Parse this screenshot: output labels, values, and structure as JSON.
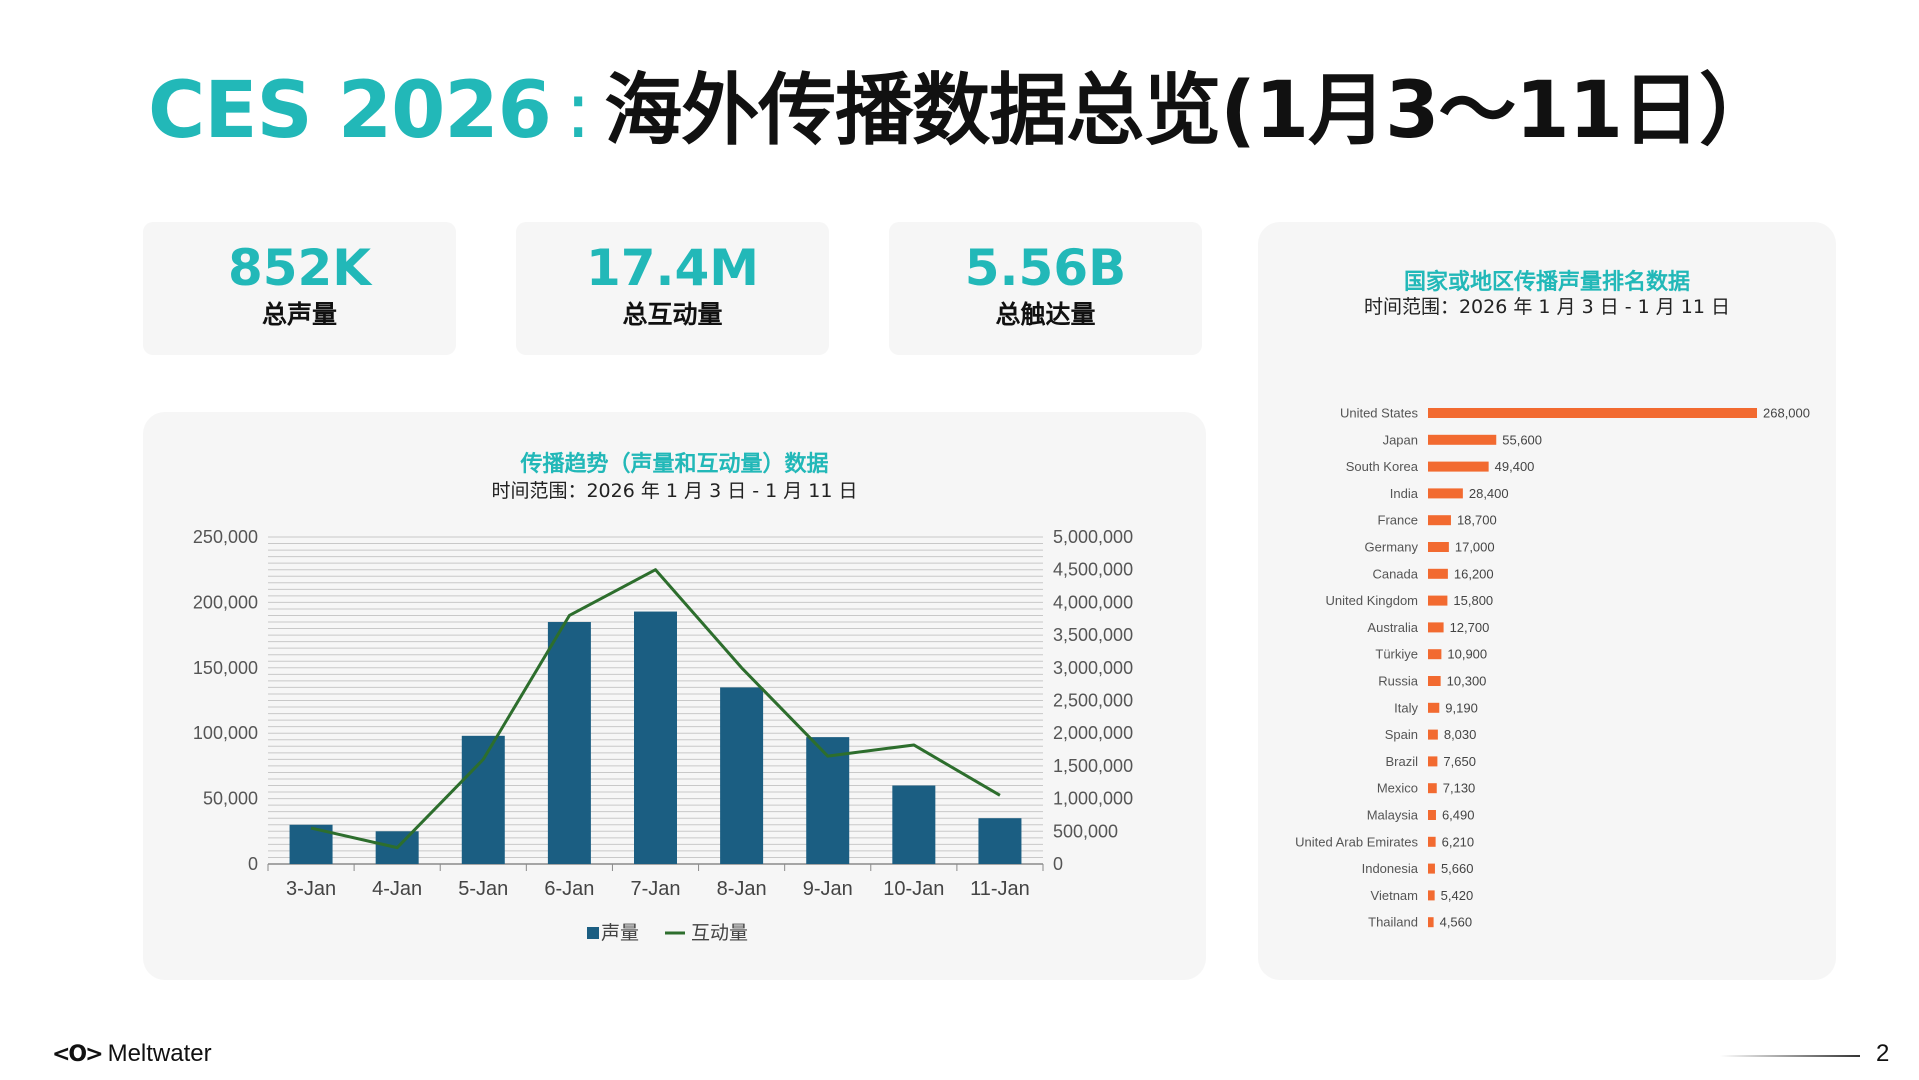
{
  "title": {
    "brand": "CES 2026",
    "separator": ":",
    "rest": "海外传播数据总览(1月3～11日）"
  },
  "kpis": [
    {
      "value": "852K",
      "label": "总声量"
    },
    {
      "value": "17.4M",
      "label": "总互动量"
    },
    {
      "value": "5.56B",
      "label": "总触达量"
    }
  ],
  "trend_panel": {
    "title": "传播趋势（声量和互动量）数据",
    "subtitle": "时间范围：2026 年 1 月 3 日 - 1 月 11 日"
  },
  "country_panel": {
    "title": "国家或地区传播声量排名数据",
    "subtitle": "时间范围：2026 年 1 月 3 日 - 1 月 11 日"
  },
  "chart_data": [
    {
      "type": "bar",
      "categories": [
        "3-Jan",
        "4-Jan",
        "5-Jan",
        "6-Jan",
        "7-Jan",
        "8-Jan",
        "9-Jan",
        "10-Jan",
        "11-Jan"
      ],
      "series": [
        {
          "name": "声量",
          "type": "bar",
          "axis": "left",
          "color": "#1b5e82",
          "values": [
            30000,
            25000,
            98000,
            185000,
            193000,
            135000,
            97000,
            60000,
            35000
          ]
        },
        {
          "name": "互动量",
          "type": "line",
          "axis": "right",
          "color": "#2d6e2d",
          "values": [
            550000,
            250000,
            1600000,
            3800000,
            4500000,
            3000000,
            1650000,
            1820000,
            1050000
          ]
        }
      ],
      "ylim_left": [
        0,
        250000
      ],
      "yticks_left": [
        "0",
        "50,000",
        "100,000",
        "150,000",
        "200,000",
        "250,000"
      ],
      "ylim_right": [
        0,
        5000000
      ],
      "yticks_right": [
        "0",
        "500,000",
        "1,000,000",
        "1,500,000",
        "2,000,000",
        "2,500,000",
        "3,000,000",
        "3,500,000",
        "4,000,000",
        "4,500,000",
        "5,000,000"
      ],
      "grid": true,
      "legend": "bottom"
    },
    {
      "type": "bar",
      "orientation": "horizontal",
      "color": "#f26a30",
      "categories": [
        "United States",
        "Japan",
        "South Korea",
        "India",
        "France",
        "Germany",
        "Canada",
        "United Kingdom",
        "Australia",
        "Türkiye",
        "Russia",
        "Italy",
        "Spain",
        "Brazil",
        "Mexico",
        "Malaysia",
        "United Arab Emirates",
        "Indonesia",
        "Vietnam",
        "Thailand"
      ],
      "values": [
        268000,
        55600,
        49400,
        28400,
        18700,
        17000,
        16200,
        15800,
        12700,
        10900,
        10300,
        9190,
        8030,
        7650,
        7130,
        6490,
        6210,
        5660,
        5420,
        4560
      ],
      "labels": [
        "268,000",
        "55,600",
        "49,400",
        "28,400",
        "18,700",
        "17,000",
        "16,200",
        "15,800",
        "12,700",
        "10,900",
        "10,300",
        "9,190",
        "8,030",
        "7,650",
        "7,130",
        "6,490",
        "6,210",
        "5,660",
        "5,420",
        "4,560"
      ]
    }
  ],
  "footer": {
    "logo_mark": "<O>",
    "brand": "Meltwater",
    "page": "2"
  }
}
